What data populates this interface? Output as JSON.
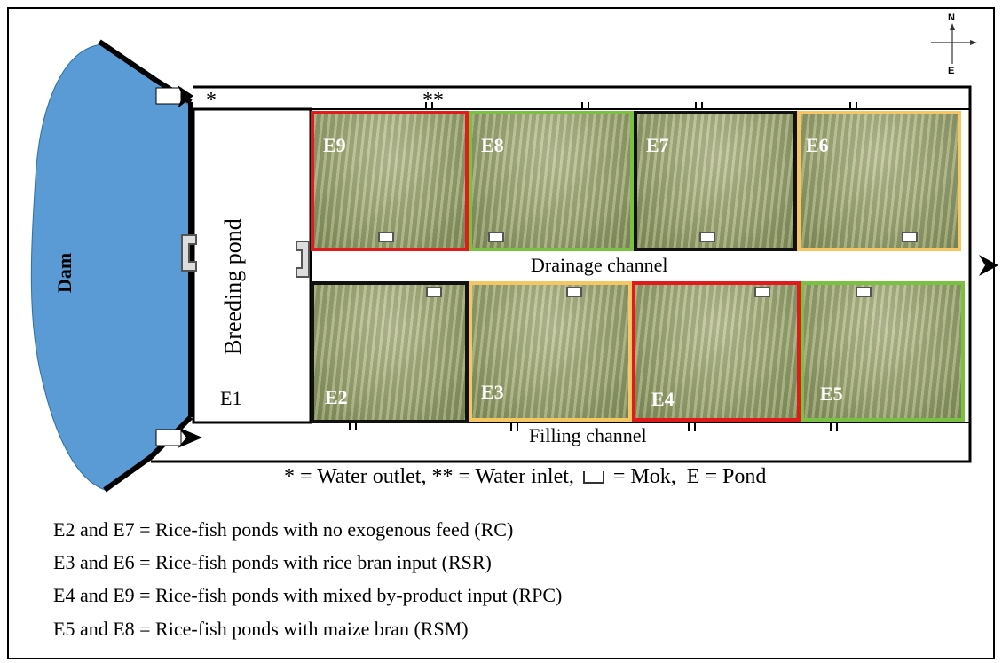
{
  "compass": {
    "north": "N",
    "east": "E"
  },
  "dam_label": "Dam",
  "breeding": {
    "label": "Breeding pond",
    "id": "E1"
  },
  "channels": {
    "drainage": "Drainage channel",
    "filling": "Filling channel"
  },
  "markers": {
    "outlet": "*",
    "inlet": "**"
  },
  "ponds": [
    {
      "id": "E9",
      "color": "#e31a1c"
    },
    {
      "id": "E8",
      "color": "#7ac142"
    },
    {
      "id": "E7",
      "color": "#111111"
    },
    {
      "id": "E6",
      "color": "#f6c663"
    },
    {
      "id": "E2",
      "color": "#111111"
    },
    {
      "id": "E3",
      "color": "#f6c663"
    },
    {
      "id": "E4",
      "color": "#e31a1c"
    },
    {
      "id": "E5",
      "color": "#7ac142"
    }
  ],
  "key": {
    "outlet": "* = Water outlet,",
    "inlet": "** = Water inlet,",
    "mok": "= Mok,",
    "pond": "E = Pond"
  },
  "treatments": [
    "E2 and E7 = Rice-fish ponds with no exogenous feed (RC)",
    "E3 and E6 = Rice-fish ponds with rice bran input (RSR)",
    "E4 and E9 = Rice-fish ponds with mixed by-product input (RPC)",
    "E5 and E8 = Rice-fish ponds with maize bran  (RSM)"
  ]
}
